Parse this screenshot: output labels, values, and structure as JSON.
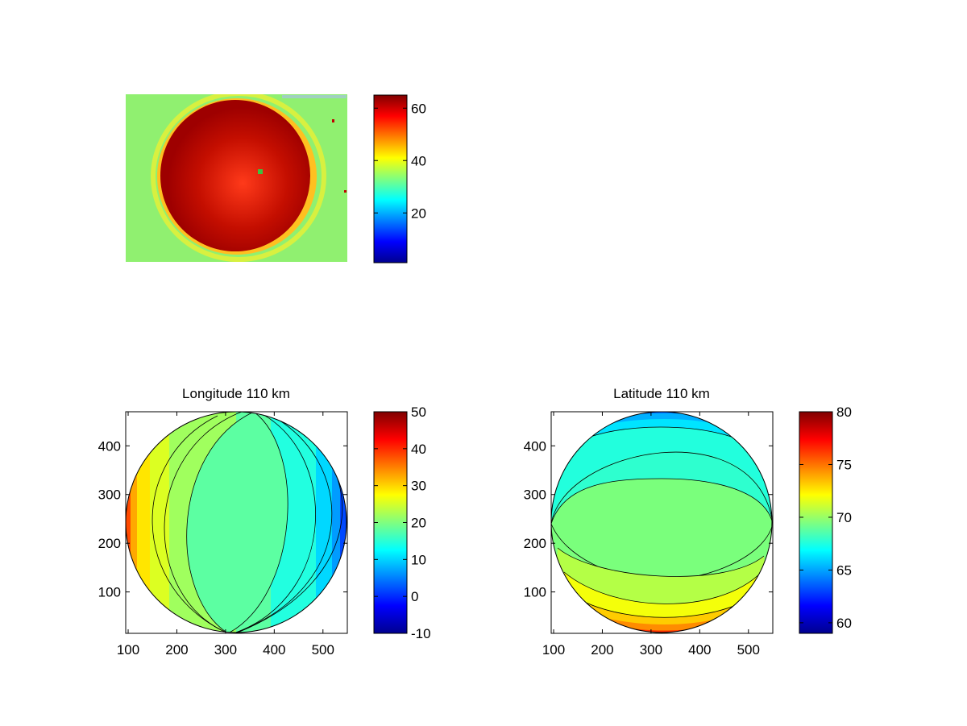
{
  "figure": {
    "background": "#ffffff"
  },
  "chart_data": [
    {
      "type": "heatmap",
      "title": "",
      "xlabel": "",
      "ylabel": "",
      "axes_visible": false,
      "description_values": {
        "background_level": 35,
        "disk_level": 62
      },
      "colorbar": {
        "colormap": "jet",
        "limits": [
          1,
          65
        ],
        "ticks": [
          20,
          40,
          60
        ],
        "tick_labels": [
          "20",
          "40",
          "60"
        ]
      }
    },
    {
      "type": "heatmap",
      "subtype": "filled-contour",
      "title": "Longitude 110 km",
      "xlabel": "",
      "ylabel": "",
      "xlim": [
        95,
        550
      ],
      "ylim": [
        15,
        470
      ],
      "xticks": [
        100,
        200,
        300,
        400,
        500
      ],
      "yticks": [
        100,
        200,
        300,
        400
      ],
      "xtick_labels": [
        "100",
        "200",
        "300",
        "400",
        "500"
      ],
      "ytick_labels": [
        "100",
        "200",
        "300",
        "400"
      ],
      "levels": [
        -10,
        0,
        10,
        20,
        30,
        40,
        50
      ],
      "disk": {
        "center_x": 322,
        "center_y": 242,
        "radius": 227
      },
      "colorbar": {
        "colormap": "jet",
        "limits": [
          -10,
          50
        ],
        "ticks": [
          -10,
          0,
          10,
          20,
          30,
          40,
          50
        ],
        "tick_labels": [
          "-10",
          "0",
          "10",
          "20",
          "30",
          "40",
          "50"
        ]
      }
    },
    {
      "type": "heatmap",
      "subtype": "filled-contour",
      "title": "Latitude 110 km",
      "xlabel": "",
      "ylabel": "",
      "xlim": [
        95,
        550
      ],
      "ylim": [
        15,
        470
      ],
      "xticks": [
        100,
        200,
        300,
        400,
        500
      ],
      "yticks": [
        100,
        200,
        300,
        400
      ],
      "xtick_labels": [
        "100",
        "200",
        "300",
        "400",
        "500"
      ],
      "ytick_labels": [
        "100",
        "200",
        "300",
        "400"
      ],
      "levels": [
        60,
        65,
        70,
        75,
        80
      ],
      "disk": {
        "center_x": 322,
        "center_y": 242,
        "radius": 227
      },
      "colorbar": {
        "colormap": "jet",
        "limits": [
          59,
          80
        ],
        "ticks": [
          60,
          65,
          70,
          75,
          80
        ],
        "tick_labels": [
          "60",
          "65",
          "70",
          "75",
          "80"
        ]
      }
    }
  ]
}
